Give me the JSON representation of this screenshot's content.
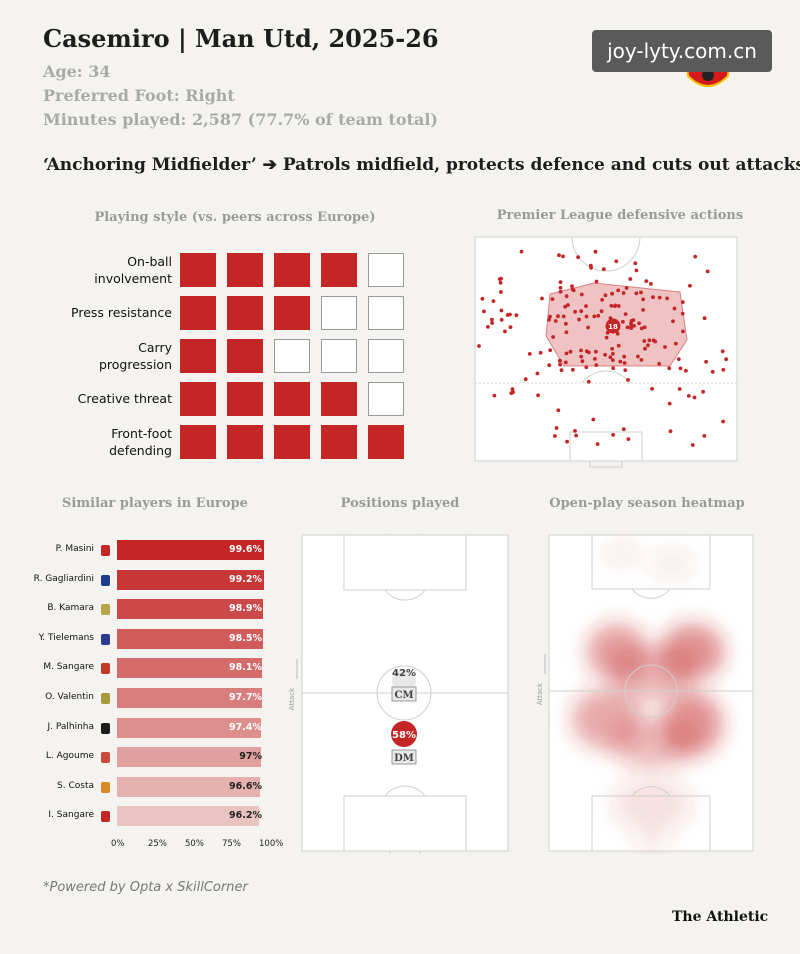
{
  "header": {
    "title": "Casemiro | Man Utd, 2025-26",
    "age": "Age: 34",
    "foot": "Preferred Foot: Right",
    "minutes": "Minutes played: 2,587 (77.7% of team total)",
    "role": "‘Anchoring Midfielder’ ➔ Patrols midfield, protects defence and cuts out attacks",
    "watermark": "joy-lyty.com.cn"
  },
  "colors": {
    "accent": "#c42626",
    "background": "#f4f3ef",
    "muted": "#a9a9a9"
  },
  "chart_data": [
    {
      "type": "table",
      "title": "Playing style (vs. peers across Europe)",
      "rows": [
        {
          "label": "On-ball involvement",
          "filled": 4,
          "of": 5
        },
        {
          "label": "Press resistance",
          "filled": 3,
          "of": 5
        },
        {
          "label": "Carry progression",
          "filled": 2,
          "of": 5
        },
        {
          "label": "Creative threat",
          "filled": 4,
          "of": 5
        },
        {
          "label": "Front-foot defending",
          "filled": 5,
          "of": 5
        }
      ]
    },
    {
      "type": "scatter",
      "title": "Premier League defensive actions",
      "zone_label": "18"
    },
    {
      "type": "bar",
      "title": "Similar players in Europe",
      "categories": [
        "P. Masini",
        "R. Gagliardini",
        "B. Kamara",
        "Y. Tielemans",
        "M. Sangare",
        "O. Valentin",
        "J. Palhinha",
        "L. Agoume",
        "S. Costa",
        "I. Sangare"
      ],
      "values": [
        99.6,
        99.2,
        98.9,
        98.5,
        98.1,
        97.7,
        97.4,
        97,
        96.6,
        96.2
      ],
      "labels": [
        "99.6%",
        "99.2%",
        "98.9%",
        "98.5%",
        "98.1%",
        "97.7%",
        "97.4%",
        "97%",
        "96.6%",
        "96.2%"
      ],
      "xticks": [
        "0%",
        "25%",
        "50%",
        "75%",
        "100%"
      ],
      "xlim": [
        0,
        100
      ]
    },
    {
      "type": "heatmap",
      "title": "Positions played",
      "axis_label": "Attack",
      "positions": [
        {
          "name": "CM",
          "share": "42%"
        },
        {
          "name": "DM",
          "share": "58%"
        }
      ]
    },
    {
      "type": "heatmap",
      "title": "Open-play season heatmap",
      "axis_label": "Attack"
    }
  ],
  "footer": {
    "credit": "*Powered by Opta x SkillCorner",
    "brand": "The Athletic"
  }
}
